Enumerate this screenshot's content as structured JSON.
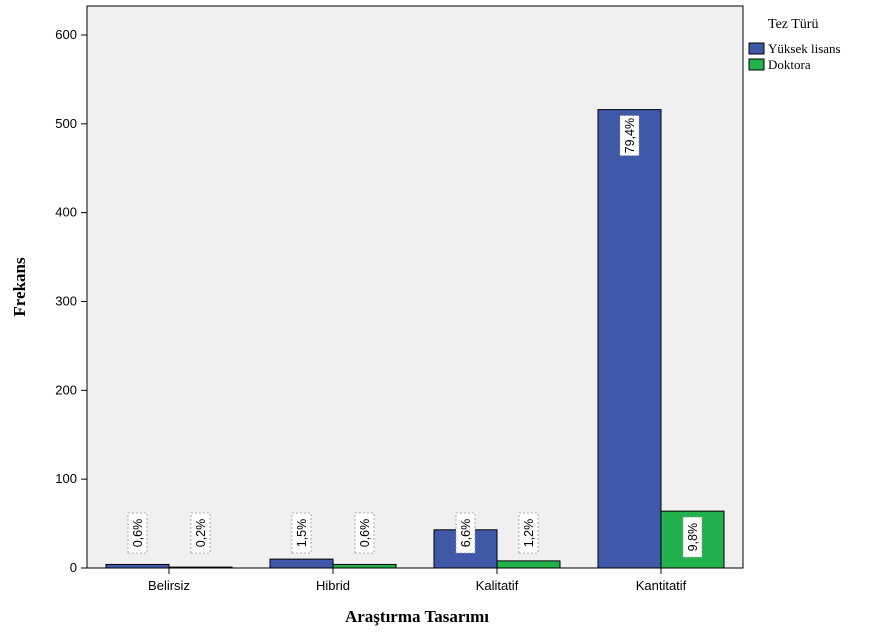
{
  "chart_data": {
    "type": "bar",
    "xlabel": "Araştırma Tasarımı",
    "ylabel": "Frekans",
    "ylim": [
      0,
      600
    ],
    "yticks": [
      0,
      100,
      200,
      300,
      400,
      500,
      600
    ],
    "categories": [
      "Belirsiz",
      "Hibrid",
      "Kalitatif",
      "Kantitatif"
    ],
    "legend_title": "Tez Türü",
    "legend_position": "right",
    "grid": false,
    "colors": {
      "plot_bg": "#f0f0f0",
      "yuksek_lisans": "#3f58a8",
      "doktora": "#22b14c"
    },
    "series": [
      {
        "name": "Yüksek lisans",
        "values": [
          4,
          10,
          43,
          516
        ],
        "labels": [
          "0,6%",
          "1,5%",
          "6,6%",
          "79,4%"
        ]
      },
      {
        "name": "Doktora",
        "values": [
          1,
          4,
          8,
          64
        ],
        "labels": [
          "0,2%",
          "0,6%",
          "1,2%",
          "9,8%"
        ]
      }
    ]
  }
}
